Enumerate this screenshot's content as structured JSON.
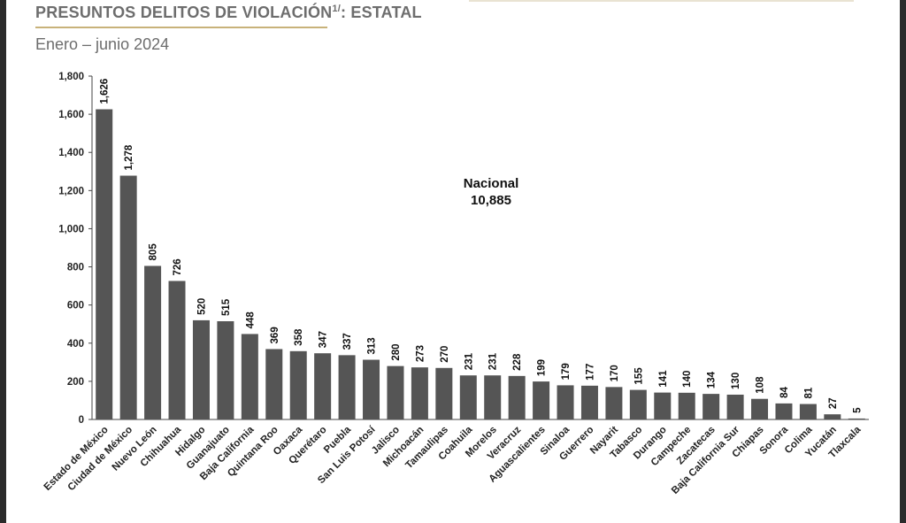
{
  "header": {
    "title": "PRESUNTOS DELITOS DE VIOLACIÓN",
    "title_footnote": "1/",
    "title_suffix": ": ESTATAL",
    "subtitle": "Enero – junio 2024"
  },
  "annotation": {
    "label": "Nacional",
    "value": "10,885"
  },
  "colors": {
    "bar": "#555555",
    "text": "#111111",
    "title": "#6d6d6d",
    "accent": "#c8b27a"
  },
  "chart_data": {
    "type": "bar",
    "title": "PRESUNTOS DELITOS DE VIOLACIÓN1/: ESTATAL",
    "subtitle": "Enero – junio 2024",
    "xlabel": "",
    "ylabel": "",
    "ylim": [
      0,
      1800
    ],
    "yticks": [
      0,
      200,
      400,
      600,
      800,
      1000,
      1200,
      1400,
      1600,
      1800
    ],
    "ytick_labels": [
      "0",
      "200",
      "400",
      "600",
      "800",
      "1,000",
      "1,200",
      "1,400",
      "1,600",
      "1,800"
    ],
    "grid": false,
    "categories": [
      "Estado de México",
      "Ciudad de México",
      "Nuevo León",
      "Chihuahua",
      "Hidalgo",
      "Guanajuato",
      "Baja California",
      "Quintana Roo",
      "Oaxaca",
      "Querétaro",
      "Puebla",
      "San Luis Potosí",
      "Jalisco",
      "Michoacán",
      "Tamaulipas",
      "Coahuila",
      "Morelos",
      "Veracruz",
      "Aguascalientes",
      "Sinaloa",
      "Guerrero",
      "Nayarit",
      "Tabasco",
      "Durango",
      "Campeche",
      "Zacatecas",
      "Baja California Sur",
      "Chiapas",
      "Sonora",
      "Colima",
      "Yucatán",
      "Tlaxcala"
    ],
    "values": [
      1626,
      1278,
      805,
      726,
      520,
      515,
      448,
      369,
      358,
      347,
      337,
      313,
      280,
      273,
      270,
      231,
      231,
      228,
      199,
      179,
      177,
      170,
      155,
      141,
      140,
      134,
      130,
      108,
      84,
      81,
      27,
      5
    ],
    "value_labels": [
      "1,626",
      "1,278",
      "805",
      "726",
      "520",
      "515",
      "448",
      "369",
      "358",
      "347",
      "337",
      "313",
      "280",
      "273",
      "270",
      "231",
      "231",
      "228",
      "199",
      "179",
      "177",
      "170",
      "155",
      "141",
      "140",
      "134",
      "130",
      "108",
      "84",
      "81",
      "27",
      "5"
    ]
  }
}
